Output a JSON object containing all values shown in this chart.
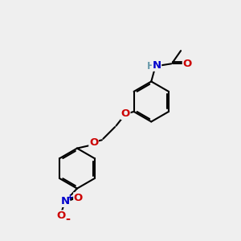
{
  "background_color": "#efefef",
  "bond_color": "#000000",
  "bond_width": 1.5,
  "atom_colors": {
    "N": "#0000cc",
    "O": "#cc0000",
    "H": "#6699aa",
    "C": "#000000"
  },
  "font_size": 8.5,
  "fig_width": 3.0,
  "fig_height": 3.0,
  "dpi": 100
}
